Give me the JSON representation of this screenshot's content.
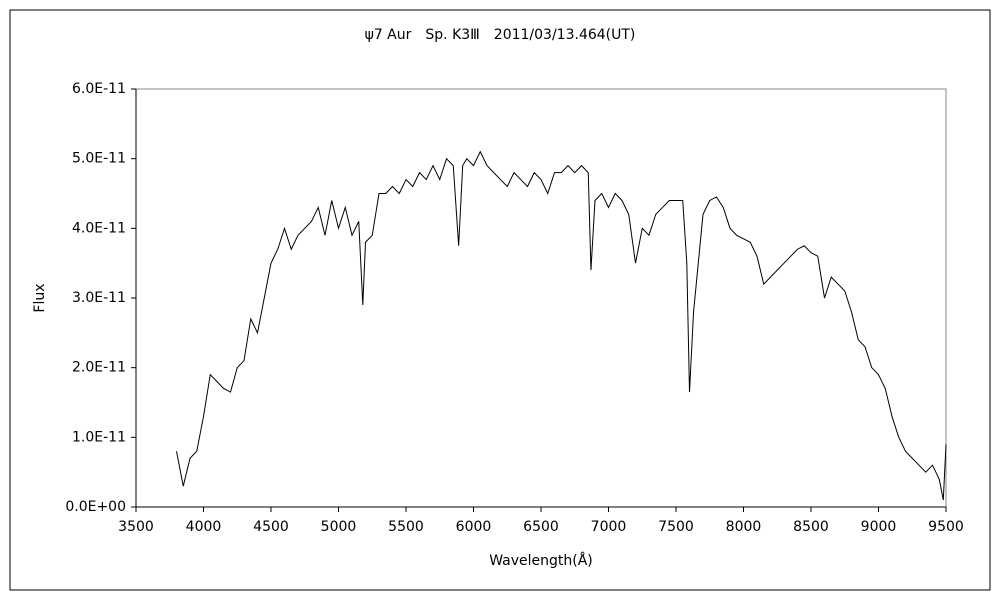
{
  "chart_data": {
    "type": "line",
    "title": "ψ7 Aur　Sp. K3Ⅲ　2011/03/13.464(UT)",
    "x_label": "Wavelength(Å)",
    "y_label": "Flux",
    "color": "#000000",
    "xlim": [
      3500,
      9500
    ],
    "xticks": [
      3500,
      4000,
      4500,
      5000,
      5500,
      6000,
      6500,
      7000,
      7500,
      8000,
      8500,
      9000,
      9500
    ],
    "ylim": [
      0,
      6e-11
    ],
    "yticks": [
      {
        "value": 0,
        "label": "0.0E+00"
      },
      {
        "value": 1e-11,
        "label": "1.0E-11"
      },
      {
        "value": 2e-11,
        "label": "2.0E-11"
      },
      {
        "value": 3e-11,
        "label": "3.0E-11"
      },
      {
        "value": 4e-11,
        "label": "4.0E-11"
      },
      {
        "value": 5e-11,
        "label": "5.0E-11"
      },
      {
        "value": 6e-11,
        "label": "6.0E-11"
      }
    ],
    "x": [
      3800,
      3850,
      3900,
      3950,
      4000,
      4050,
      4100,
      4150,
      4200,
      4250,
      4300,
      4350,
      4400,
      4450,
      4500,
      4550,
      4600,
      4650,
      4700,
      4750,
      4800,
      4850,
      4900,
      4950,
      5000,
      5050,
      5100,
      5150,
      5180,
      5200,
      5250,
      5300,
      5350,
      5400,
      5450,
      5500,
      5550,
      5600,
      5650,
      5700,
      5750,
      5800,
      5850,
      5890,
      5920,
      5950,
      6000,
      6050,
      6100,
      6150,
      6200,
      6250,
      6300,
      6350,
      6400,
      6450,
      6500,
      6550,
      6600,
      6650,
      6700,
      6750,
      6800,
      6850,
      6870,
      6900,
      6950,
      7000,
      7050,
      7100,
      7150,
      7200,
      7250,
      7300,
      7350,
      7400,
      7450,
      7500,
      7550,
      7580,
      7600,
      7630,
      7650,
      7700,
      7750,
      7800,
      7850,
      7900,
      7950,
      8000,
      8050,
      8100,
      8150,
      8200,
      8250,
      8300,
      8350,
      8400,
      8450,
      8500,
      8550,
      8600,
      8650,
      8700,
      8750,
      8800,
      8850,
      8900,
      8950,
      9000,
      9050,
      9100,
      9150,
      9200,
      9250,
      9300,
      9350,
      9400,
      9450,
      9480,
      9500
    ],
    "values": [
      8e-12,
      3e-12,
      7e-12,
      8e-12,
      1.3e-11,
      1.9e-11,
      1.8e-11,
      1.7e-11,
      1.65e-11,
      2e-11,
      2.1e-11,
      2.7e-11,
      2.5e-11,
      3e-11,
      3.5e-11,
      3.7e-11,
      4e-11,
      3.7e-11,
      3.9e-11,
      4e-11,
      4.1e-11,
      4.3e-11,
      3.9e-11,
      4.4e-11,
      4e-11,
      4.3e-11,
      3.9e-11,
      4.1e-11,
      2.9e-11,
      3.8e-11,
      3.9e-11,
      4.5e-11,
      4.5e-11,
      4.6e-11,
      4.5e-11,
      4.7e-11,
      4.6e-11,
      4.8e-11,
      4.7e-11,
      4.9e-11,
      4.7e-11,
      5e-11,
      4.9e-11,
      3.75e-11,
      4.9e-11,
      5e-11,
      4.9e-11,
      5.1e-11,
      4.9e-11,
      4.8e-11,
      4.7e-11,
      4.6e-11,
      4.8e-11,
      4.7e-11,
      4.6e-11,
      4.8e-11,
      4.7e-11,
      4.5e-11,
      4.8e-11,
      4.8e-11,
      4.9e-11,
      4.8e-11,
      4.9e-11,
      4.8e-11,
      3.4e-11,
      4.4e-11,
      4.5e-11,
      4.3e-11,
      4.5e-11,
      4.4e-11,
      4.2e-11,
      3.5e-11,
      4e-11,
      3.9e-11,
      4.2e-11,
      4.3e-11,
      4.4e-11,
      4.4e-11,
      4.4e-11,
      3.5e-11,
      1.65e-11,
      2.8e-11,
      3.2e-11,
      4.2e-11,
      4.4e-11,
      4.45e-11,
      4.3e-11,
      4e-11,
      3.9e-11,
      3.85e-11,
      3.8e-11,
      3.6e-11,
      3.2e-11,
      3.3e-11,
      3.4e-11,
      3.5e-11,
      3.6e-11,
      3.7e-11,
      3.75e-11,
      3.65e-11,
      3.6e-11,
      3e-11,
      3.3e-11,
      3.2e-11,
      3.1e-11,
      2.8e-11,
      2.4e-11,
      2.3e-11,
      2e-11,
      1.9e-11,
      1.7e-11,
      1.3e-11,
      1e-11,
      8e-12,
      7e-12,
      6e-12,
      5e-12,
      6e-12,
      4e-12,
      1e-12,
      9e-12
    ]
  }
}
